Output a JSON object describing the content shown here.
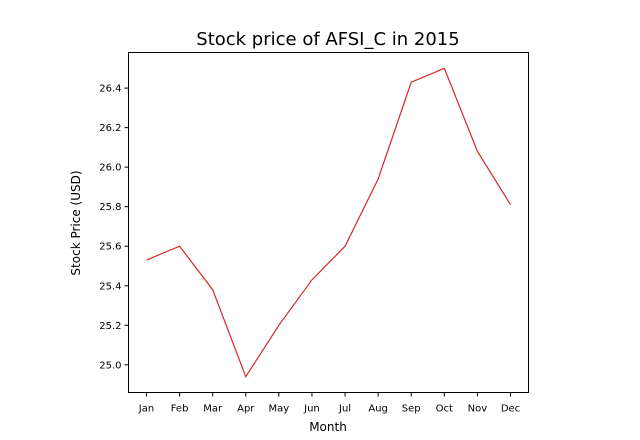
{
  "chart_data": {
    "type": "line",
    "title": "Stock price of AFSI_C in 2015",
    "xlabel": "Month",
    "ylabel": "Stock Price (USD)",
    "categories": [
      "Jan",
      "Feb",
      "Mar",
      "Apr",
      "May",
      "Jun",
      "Jul",
      "Aug",
      "Sep",
      "Oct",
      "Nov",
      "Dec"
    ],
    "series": [
      {
        "values": [
          25.53,
          25.6,
          25.38,
          24.94,
          25.2,
          25.43,
          25.6,
          25.94,
          26.43,
          26.5,
          26.08,
          25.81
        ],
        "color": "#d62728"
      }
    ],
    "yticks": [
      25.0,
      25.2,
      25.4,
      25.6,
      25.8,
      26.0,
      26.2,
      26.4
    ],
    "ytick_labels": [
      "25.0",
      "25.2",
      "25.4",
      "25.6",
      "25.8",
      "26.0",
      "26.2",
      "26.4"
    ],
    "ylim": [
      24.86,
      26.58
    ],
    "grid": false,
    "legend": "none"
  }
}
